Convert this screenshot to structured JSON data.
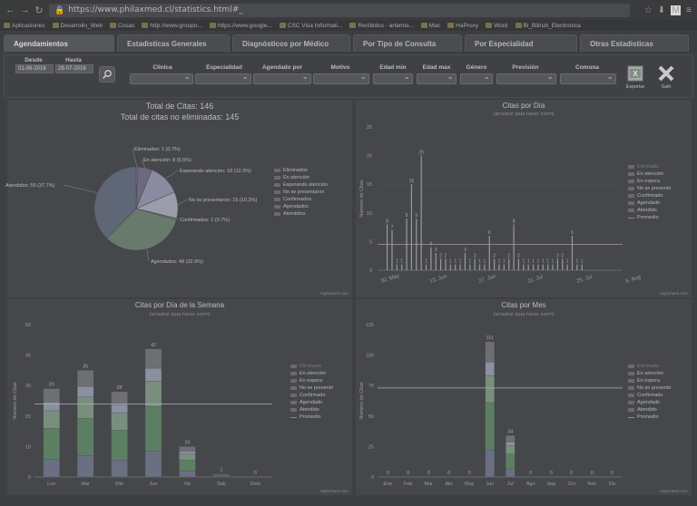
{
  "browser": {
    "url": "https://www.philaxmed.cl/statistics.html#_",
    "bookmarks": [
      "Aplicaciones",
      "Desarrollo_Web",
      "Cosas",
      "http://www.groupo...",
      "https://www.google...",
      "CSC Visa Informati...",
      "Recibidos - artemio...",
      "Mac",
      "HaProxy",
      "Word",
      "Bi_Bilirub_Electronica"
    ]
  },
  "tabs": [
    "Agendamientos",
    "Estadisticas Generales",
    "Diagnósticos por Médico",
    "Por Tipo de Consulta",
    "Por Especialidad",
    "Otras Estadisticas"
  ],
  "filters": {
    "desde": {
      "label": "Desde",
      "value": "01-06-2016"
    },
    "hasta": {
      "label": "Hasta",
      "value": "28-07-2016"
    },
    "labels": [
      "Clinica",
      "Especialidad",
      "Agendado por",
      "Motivo",
      "Edad min",
      "Edad max",
      "Género",
      "Previsión",
      "Comuna"
    ],
    "exportar": "Exportar",
    "salir": "Salir"
  },
  "pie": {
    "title1": "Total de Citas: 146",
    "title2": "Total de citas no eliminadas: 145",
    "credit": "Highcharts.com",
    "chart_data": {
      "type": "pie",
      "slices": [
        {
          "name": "Eliminados",
          "value": 1,
          "label": "Eliminados: 1 (0.7%)"
        },
        {
          "name": "En atención",
          "value": 8,
          "label": "En atención: 8 (5.5%)"
        },
        {
          "name": "Esperando atención",
          "value": 18,
          "label": "Esperando atención: 18 (12.3%)"
        },
        {
          "name": "No se presentaron",
          "value": 15,
          "label": "No se presentaron: 15 (10.3%)"
        },
        {
          "name": "Confirmados",
          "value": 1,
          "label": "Confirmados: 1 (0.7%)"
        },
        {
          "name": "Agendados",
          "value": 48,
          "label": "Agendados: 48 (32.9%)"
        },
        {
          "name": "Atendidos",
          "value": 55,
          "label": "Atendidos: 55 (37.7%)"
        }
      ],
      "colors": [
        "#7a7d8f",
        "#6e6880",
        "#8a8ca2",
        "#9b9daa",
        "#757a80",
        "#687a6c",
        "#5f6676"
      ]
    },
    "legend": [
      "Eliminados",
      "En atención",
      "Esperando atención",
      "No se presentaron",
      "Confirmados",
      "Agendados",
      "Atendidos"
    ]
  },
  "day": {
    "title": "Citas por Día",
    "subtitle": "(arrastrar para hacer zoom)",
    "ylabel": "Número de Citas",
    "credit": "Highcharts.com",
    "legend": [
      "Eliminado",
      "En atención",
      "En espera",
      "No se presentó",
      "Confirmado",
      "Agendado",
      "Atendido",
      "Promedio"
    ],
    "chart_data": {
      "type": "bar",
      "ylim": [
        0,
        25
      ],
      "yticks": [
        0,
        5,
        10,
        15,
        20,
        25
      ],
      "xticks": [
        "30. May",
        "13. Jun",
        "27. Jun",
        "11. Jul",
        "25. Jul",
        "8. Aug"
      ],
      "average": 4.5,
      "values": [
        8,
        7,
        1,
        1,
        9,
        15,
        9,
        20,
        1,
        4,
        3,
        2,
        2,
        1,
        1,
        1,
        3,
        1,
        2,
        1,
        1,
        6,
        2,
        1,
        1,
        2,
        8,
        2,
        1,
        1,
        1,
        1,
        1,
        1,
        1,
        2,
        2,
        1,
        6,
        1,
        1
      ]
    }
  },
  "week": {
    "title": "Citas por Día de la Semana",
    "subtitle": "(arrastrar para hacer zoom)",
    "ylabel": "Número de Citas",
    "credit": "Highcharts.com",
    "legend": [
      "Eliminado",
      "En atención",
      "En espera",
      "No se presentó",
      "Confirmado",
      "Agendado",
      "Atendido",
      "Promedio"
    ],
    "chart_data": {
      "type": "bar",
      "categories": [
        "Lun",
        "Mar",
        "Mie",
        "Jue",
        "Vie",
        "Sab",
        "Dom"
      ],
      "values": [
        29,
        35,
        28,
        42,
        10,
        1,
        0
      ],
      "ylim": [
        0,
        50
      ],
      "yticks": [
        0,
        10,
        20,
        30,
        40,
        50
      ],
      "average": 24
    }
  },
  "month": {
    "title": "Citas por Mes",
    "subtitle": "(arrastrar para hacer zoom)",
    "ylabel": "Número de Citas",
    "credit": "Highcharts.com",
    "legend": [
      "Eliminado",
      "En atención",
      "En espera",
      "No se presentó",
      "Confirmado",
      "Agendado",
      "Atendido",
      "Promedio"
    ],
    "chart_data": {
      "type": "bar",
      "categories": [
        "Ene",
        "Feb",
        "Mar",
        "Abr",
        "May",
        "Jun",
        "Jul",
        "Ago",
        "Sep",
        "Oct",
        "Nov",
        "Dic"
      ],
      "values": [
        0,
        0,
        0,
        0,
        0,
        111,
        34,
        0,
        0,
        0,
        0,
        0
      ],
      "ylim": [
        0,
        125
      ],
      "yticks": [
        0,
        25,
        50,
        75,
        100,
        125
      ],
      "average": 73
    }
  }
}
